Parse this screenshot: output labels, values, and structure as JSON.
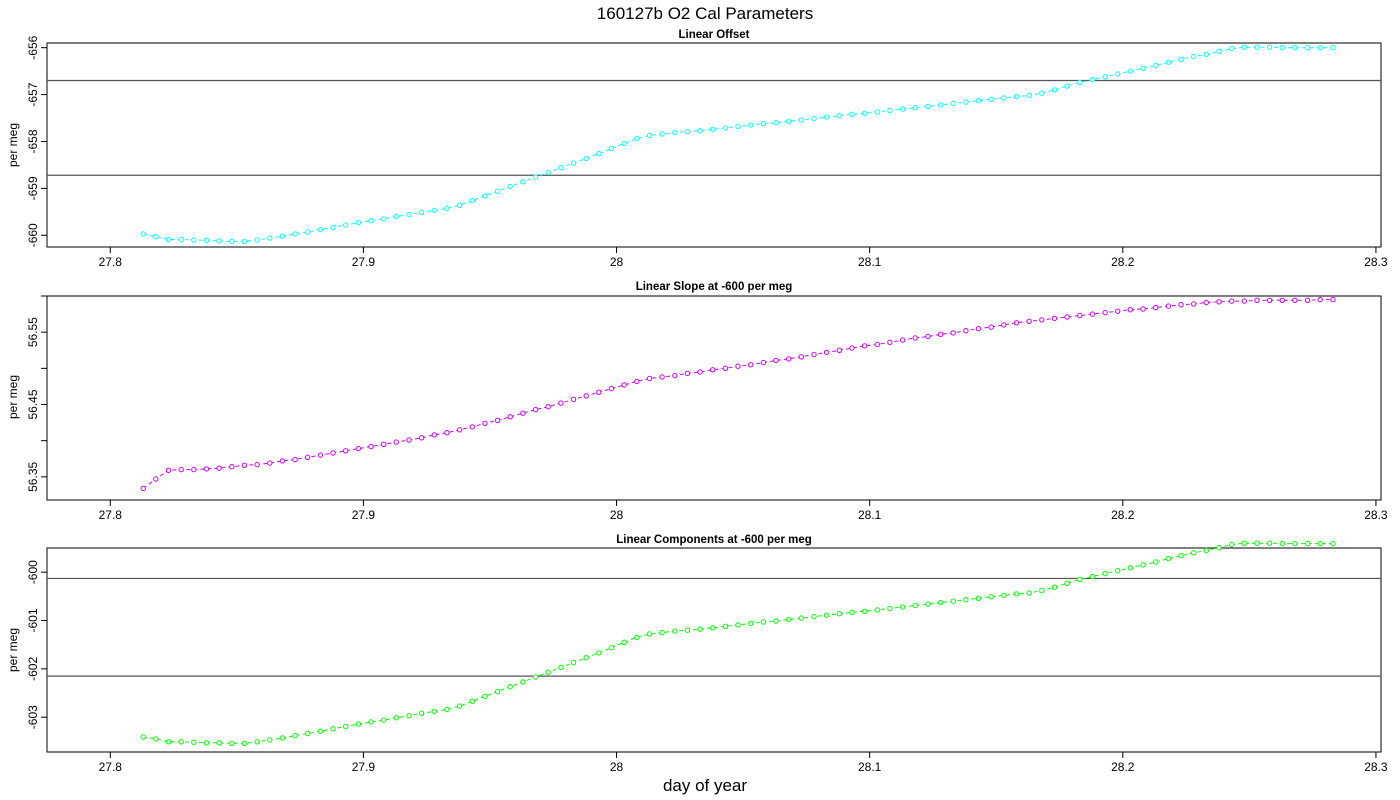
{
  "figure": {
    "title": "160127b   O2 Cal Parameters",
    "xlabel": "day of year"
  },
  "chart_data": [
    {
      "type": "line",
      "title": "Linear Offset",
      "ylabel": "per meg",
      "color": "#00ffff",
      "xlim": [
        27.775,
        28.302
      ],
      "ylim": [
        -660.25,
        -655.9
      ],
      "xticks": [
        27.8,
        27.9,
        28.0,
        28.1,
        28.2,
        28.3
      ],
      "yticks": [
        -660,
        -659,
        -658,
        -657,
        -656
      ],
      "hlines": [
        -656.7,
        -658.72
      ],
      "grid": false,
      "series": [
        {
          "x": [
            27.813,
            27.818,
            27.823,
            27.828,
            27.833,
            27.838,
            27.843,
            27.848,
            27.853,
            27.858,
            27.863,
            27.868,
            27.873,
            27.878,
            27.883,
            27.888,
            27.893,
            27.898,
            27.903,
            27.908,
            27.913,
            27.918,
            27.923,
            27.928,
            27.933,
            27.938,
            27.943,
            27.948,
            27.953,
            27.958,
            27.963,
            27.968,
            27.973,
            27.978,
            27.983,
            27.988,
            27.993,
            27.998,
            28.003,
            28.008,
            28.013,
            28.018,
            28.023,
            28.028,
            28.033,
            28.038,
            28.043,
            28.048,
            28.053,
            28.058,
            28.063,
            28.068,
            28.073,
            28.078,
            28.083,
            28.088,
            28.093,
            28.098,
            28.103,
            28.108,
            28.113,
            28.118,
            28.123,
            28.128,
            28.133,
            28.138,
            28.143,
            28.148,
            28.153,
            28.158,
            28.163,
            28.168,
            28.173,
            28.178,
            28.183,
            28.188,
            28.193,
            28.198,
            28.203,
            28.208,
            28.213,
            28.218,
            28.223,
            28.228,
            28.233,
            28.238,
            28.243,
            28.248,
            28.253,
            28.258,
            28.263,
            28.268,
            28.273,
            28.278,
            28.283
          ],
          "y": [
            -659.97,
            -660.03,
            -660.09,
            -660.09,
            -660.1,
            -660.11,
            -660.12,
            -660.13,
            -660.13,
            -660.1,
            -660.06,
            -660.02,
            -659.97,
            -659.93,
            -659.88,
            -659.83,
            -659.78,
            -659.73,
            -659.69,
            -659.65,
            -659.6,
            -659.56,
            -659.51,
            -659.47,
            -659.43,
            -659.36,
            -659.26,
            -659.16,
            -659.06,
            -658.96,
            -658.86,
            -658.76,
            -658.66,
            -658.56,
            -658.46,
            -658.36,
            -658.26,
            -658.15,
            -658.04,
            -657.94,
            -657.87,
            -657.84,
            -657.81,
            -657.79,
            -657.77,
            -657.74,
            -657.71,
            -657.68,
            -657.65,
            -657.62,
            -657.6,
            -657.57,
            -657.54,
            -657.51,
            -657.48,
            -657.45,
            -657.42,
            -657.4,
            -657.37,
            -657.34,
            -657.31,
            -657.28,
            -657.25,
            -657.22,
            -657.19,
            -657.16,
            -657.13,
            -657.1,
            -657.07,
            -657.04,
            -657.02,
            -656.97,
            -656.9,
            -656.82,
            -656.74,
            -656.68,
            -656.62,
            -656.56,
            -656.5,
            -656.44,
            -656.38,
            -656.31,
            -656.25,
            -656.19,
            -656.14,
            -656.08,
            -656.02,
            -655.99,
            -655.99,
            -655.99,
            -656.0,
            -656.0,
            -656.0,
            -656.0,
            -656.0
          ]
        }
      ]
    },
    {
      "type": "line",
      "title": "Linear Slope at -600 per meg",
      "ylabel": "per meg",
      "color": "#cc00ff",
      "xlim": [
        27.775,
        28.302
      ],
      "ylim": [
        56.318,
        56.6
      ],
      "xticks": [
        27.8,
        27.9,
        28.0,
        28.1,
        28.2,
        28.3
      ],
      "yticks": [
        56.35,
        56.45,
        56.55
      ],
      "yminor": [
        56.4,
        56.5,
        56.6
      ],
      "hlines": [],
      "grid": false,
      "series": [
        {
          "x": [
            27.813,
            27.818,
            27.823,
            27.828,
            27.833,
            27.838,
            27.843,
            27.848,
            27.853,
            27.858,
            27.863,
            27.868,
            27.873,
            27.878,
            27.883,
            27.888,
            27.893,
            27.898,
            27.903,
            27.908,
            27.913,
            27.918,
            27.923,
            27.928,
            27.933,
            27.938,
            27.943,
            27.948,
            27.953,
            27.958,
            27.963,
            27.968,
            27.973,
            27.978,
            27.983,
            27.988,
            27.993,
            27.998,
            28.003,
            28.008,
            28.013,
            28.018,
            28.023,
            28.028,
            28.033,
            28.038,
            28.043,
            28.048,
            28.053,
            28.058,
            28.063,
            28.068,
            28.073,
            28.078,
            28.083,
            28.088,
            28.093,
            28.098,
            28.103,
            28.108,
            28.113,
            28.118,
            28.123,
            28.128,
            28.133,
            28.138,
            28.143,
            28.148,
            28.153,
            28.158,
            28.163,
            28.168,
            28.173,
            28.178,
            28.183,
            28.188,
            28.193,
            28.198,
            28.203,
            28.208,
            28.213,
            28.218,
            28.223,
            28.228,
            28.233,
            28.238,
            28.243,
            28.248,
            28.253,
            28.258,
            28.263,
            28.268,
            28.273,
            28.278,
            28.283
          ],
          "y": [
            56.334,
            56.347,
            56.359,
            56.36,
            56.36,
            56.361,
            56.362,
            56.364,
            56.366,
            56.367,
            56.369,
            56.372,
            56.374,
            56.377,
            56.38,
            56.383,
            56.386,
            56.389,
            56.392,
            56.395,
            56.398,
            56.401,
            56.404,
            56.408,
            56.411,
            56.415,
            56.419,
            56.424,
            56.428,
            56.433,
            56.438,
            56.443,
            56.447,
            56.452,
            56.457,
            56.462,
            56.467,
            56.472,
            56.477,
            56.482,
            56.486,
            56.488,
            56.49,
            56.493,
            56.495,
            56.498,
            56.5,
            56.503,
            56.505,
            56.508,
            56.511,
            56.513,
            56.516,
            56.519,
            56.522,
            56.525,
            56.528,
            56.531,
            56.533,
            56.536,
            56.539,
            56.542,
            56.544,
            56.547,
            56.549,
            56.552,
            56.555,
            56.557,
            56.56,
            56.563,
            56.565,
            56.567,
            56.569,
            56.571,
            56.573,
            56.575,
            56.577,
            56.579,
            56.581,
            56.582,
            56.584,
            56.586,
            56.588,
            56.589,
            56.591,
            56.592,
            56.593,
            56.593,
            56.594,
            56.594,
            56.594,
            56.594,
            56.594,
            56.595,
            56.595
          ]
        }
      ]
    },
    {
      "type": "line",
      "title": "Linear Components at -600 per meg",
      "ylabel": "per meg",
      "color": "#00ff00",
      "xlim": [
        27.775,
        28.302
      ],
      "ylim": [
        -603.72,
        -599.5
      ],
      "xticks": [
        27.8,
        27.9,
        28.0,
        28.1,
        28.2,
        28.3
      ],
      "yticks": [
        -603,
        -602,
        -601,
        -600
      ],
      "hlines": [
        -600.13,
        -602.15
      ],
      "grid": false,
      "series": [
        {
          "x": [
            27.813,
            27.818,
            27.823,
            27.828,
            27.833,
            27.838,
            27.843,
            27.848,
            27.853,
            27.858,
            27.863,
            27.868,
            27.873,
            27.878,
            27.883,
            27.888,
            27.893,
            27.898,
            27.903,
            27.908,
            27.913,
            27.918,
            27.923,
            27.928,
            27.933,
            27.938,
            27.943,
            27.948,
            27.953,
            27.958,
            27.963,
            27.968,
            27.973,
            27.978,
            27.983,
            27.988,
            27.993,
            27.998,
            28.003,
            28.008,
            28.013,
            28.018,
            28.023,
            28.028,
            28.033,
            28.038,
            28.043,
            28.048,
            28.053,
            28.058,
            28.063,
            28.068,
            28.073,
            28.078,
            28.083,
            28.088,
            28.093,
            28.098,
            28.103,
            28.108,
            28.113,
            28.118,
            28.123,
            28.128,
            28.133,
            28.138,
            28.143,
            28.148,
            28.153,
            28.158,
            28.163,
            28.168,
            28.173,
            28.178,
            28.183,
            28.188,
            28.193,
            28.198,
            28.203,
            28.208,
            28.213,
            28.218,
            28.223,
            28.228,
            28.233,
            28.238,
            28.243,
            28.248,
            28.253,
            28.258,
            28.263,
            28.268,
            28.273,
            28.278,
            28.283
          ],
          "y": [
            -603.41,
            -603.45,
            -603.51,
            -603.51,
            -603.52,
            -603.53,
            -603.53,
            -603.54,
            -603.54,
            -603.51,
            -603.47,
            -603.43,
            -603.38,
            -603.34,
            -603.29,
            -603.24,
            -603.19,
            -603.14,
            -603.1,
            -603.06,
            -603.01,
            -602.97,
            -602.92,
            -602.88,
            -602.84,
            -602.77,
            -602.67,
            -602.57,
            -602.47,
            -602.37,
            -602.27,
            -602.17,
            -602.07,
            -601.97,
            -601.87,
            -601.77,
            -601.67,
            -601.56,
            -601.45,
            -601.35,
            -601.28,
            -601.25,
            -601.22,
            -601.2,
            -601.18,
            -601.15,
            -601.12,
            -601.09,
            -601.06,
            -601.03,
            -601.01,
            -600.98,
            -600.95,
            -600.92,
            -600.89,
            -600.86,
            -600.83,
            -600.81,
            -600.78,
            -600.75,
            -600.72,
            -600.69,
            -600.66,
            -600.63,
            -600.6,
            -600.57,
            -600.54,
            -600.51,
            -600.48,
            -600.45,
            -600.43,
            -600.38,
            -600.31,
            -600.23,
            -600.15,
            -600.09,
            -600.03,
            -599.97,
            -599.91,
            -599.85,
            -599.79,
            -599.72,
            -599.66,
            -599.6,
            -599.55,
            -599.49,
            -599.43,
            -599.4,
            -599.4,
            -599.4,
            -599.41,
            -599.41,
            -599.41,
            -599.41,
            -599.41
          ]
        }
      ]
    }
  ]
}
